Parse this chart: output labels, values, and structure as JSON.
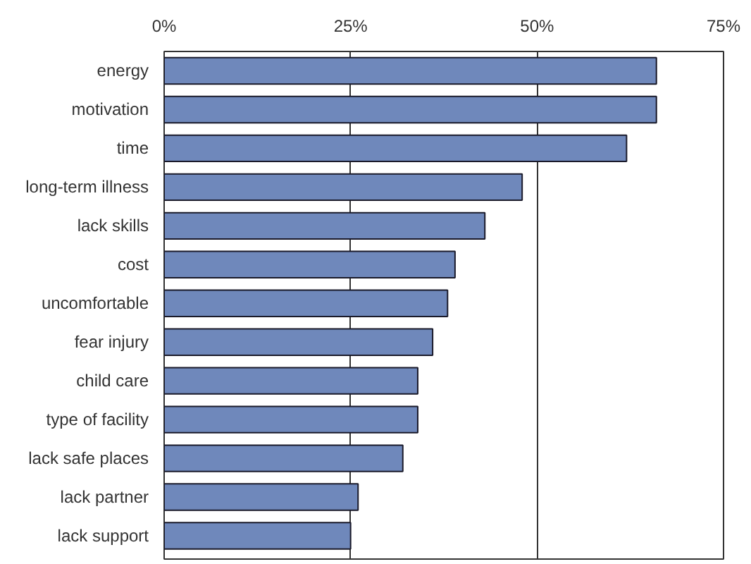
{
  "chart_data": {
    "type": "bar",
    "orientation": "horizontal",
    "categories": [
      "energy",
      "motivation",
      "time",
      "long-term illness",
      "lack skills",
      "cost",
      "uncomfortable",
      "fear injury",
      "child care",
      "type of facility",
      "lack safe places",
      "lack partner",
      "lack support"
    ],
    "values": [
      66,
      66,
      62,
      48,
      43,
      39,
      38,
      36,
      34,
      34,
      32,
      26,
      25
    ],
    "color": "#6f88bb",
    "xlim": [
      0,
      75
    ],
    "xticks": [
      {
        "value": 0,
        "label": "0%"
      },
      {
        "value": 25,
        "label": "25%"
      },
      {
        "value": 50,
        "label": "50%"
      },
      {
        "value": 75,
        "label": "75%"
      }
    ],
    "grid": "x"
  }
}
